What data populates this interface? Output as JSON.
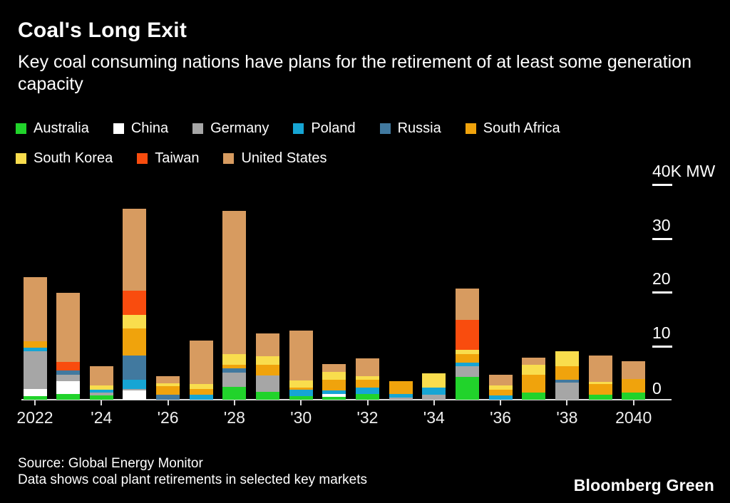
{
  "header": {
    "title": "Coal's Long Exit",
    "subtitle": "Key coal consuming nations have plans for the retirement of at least some generation capacity"
  },
  "chart_data": {
    "type": "bar",
    "stacked": true,
    "title": "Coal's Long Exit",
    "subtitle": "Key coal consuming nations have plans for the retirement of at least some generation capacity",
    "unit": "K MW",
    "ylim": [
      0,
      40
    ],
    "y_ticks": [
      0,
      10,
      20,
      30,
      40
    ],
    "y_top_label": "40K MW",
    "grid": "tick-dashes-right",
    "legend_position": "top",
    "categories": [
      2022,
      2023,
      2024,
      2025,
      2026,
      2027,
      2028,
      2029,
      2030,
      2031,
      2032,
      2033,
      2034,
      2035,
      2036,
      2037,
      2038,
      2039,
      2040
    ],
    "x_tick_labels": [
      "2022",
      "'24",
      "'26",
      "'28",
      "'30",
      "'32",
      "'34",
      "'36",
      "'38",
      "2040"
    ],
    "x_tick_indices": [
      0,
      2,
      4,
      6,
      8,
      10,
      12,
      14,
      16,
      18
    ],
    "series": [
      {
        "name": "Australia",
        "color": "#21d32b",
        "values": [
          0.7,
          1.0,
          0.8,
          0,
          0,
          0,
          2.4,
          1.5,
          0.7,
          0.5,
          1.1,
          0,
          0,
          4.2,
          0,
          1.3,
          0,
          0.9,
          1.3
        ]
      },
      {
        "name": "China",
        "color": "#ffffff",
        "values": [
          1.3,
          2.4,
          0,
          1.7,
          0,
          0,
          0,
          0,
          0,
          0.6,
          0,
          0,
          0,
          0,
          0,
          0,
          0,
          0,
          0
        ]
      },
      {
        "name": "Germany",
        "color": "#a6a6a6",
        "values": [
          7.0,
          1.2,
          0.5,
          0.3,
          0,
          0,
          2.6,
          3.0,
          0,
          0,
          0,
          0.4,
          0.9,
          2.0,
          0,
          0,
          3.2,
          0,
          0
        ]
      },
      {
        "name": "Poland",
        "color": "#16a5d4",
        "values": [
          0.7,
          0,
          0.5,
          1.7,
          0,
          0.9,
          0,
          0,
          1.1,
          0.6,
          1.1,
          0.7,
          1.3,
          0.7,
          0.8,
          0,
          0,
          0,
          0
        ]
      },
      {
        "name": "Russia",
        "color": "#41799f",
        "values": [
          0,
          0.8,
          0,
          4.5,
          0.9,
          0,
          0.8,
          0,
          0,
          0,
          0,
          0,
          0,
          0,
          0,
          0,
          0.5,
          0,
          0
        ]
      },
      {
        "name": "South Africa",
        "color": "#f0a30c",
        "values": [
          1.1,
          0,
          0,
          5.0,
          1.6,
          1.1,
          0.7,
          2.0,
          0.5,
          2.0,
          1.5,
          2.3,
          0,
          1.6,
          1.1,
          3.3,
          2.5,
          2.0,
          2.6
        ]
      },
      {
        "name": "South Korea",
        "color": "#f9dd4d",
        "values": [
          0,
          0,
          0.9,
          2.5,
          0.5,
          0.9,
          2.0,
          1.6,
          1.3,
          1.4,
          0.7,
          0,
          2.7,
          0.8,
          0.7,
          1.9,
          2.8,
          0.4,
          0
        ]
      },
      {
        "name": "Taiwan",
        "color": "#f94c0e",
        "values": [
          0,
          1.6,
          0,
          4.6,
          0,
          0,
          0,
          0,
          0,
          0,
          0,
          0,
          0,
          5.6,
          0,
          0,
          0,
          0,
          0
        ]
      },
      {
        "name": "United States",
        "color": "#d79b60",
        "values": [
          12.0,
          12.9,
          3.5,
          15.2,
          1.4,
          8.1,
          26.6,
          4.2,
          9.3,
          1.5,
          3.3,
          0,
          0,
          5.7,
          2.0,
          1.3,
          0,
          4.9,
          3.2
        ]
      }
    ],
    "legend_rows": [
      [
        "Australia",
        "China",
        "Germany",
        "Poland",
        "Russia",
        "South Africa"
      ],
      [
        "South Korea",
        "Taiwan",
        "United States"
      ]
    ]
  },
  "footer": {
    "source": "Source: Global Energy Monitor",
    "note": "Data shows coal plant retirements in selected key markets",
    "brand": "Bloomberg Green"
  }
}
